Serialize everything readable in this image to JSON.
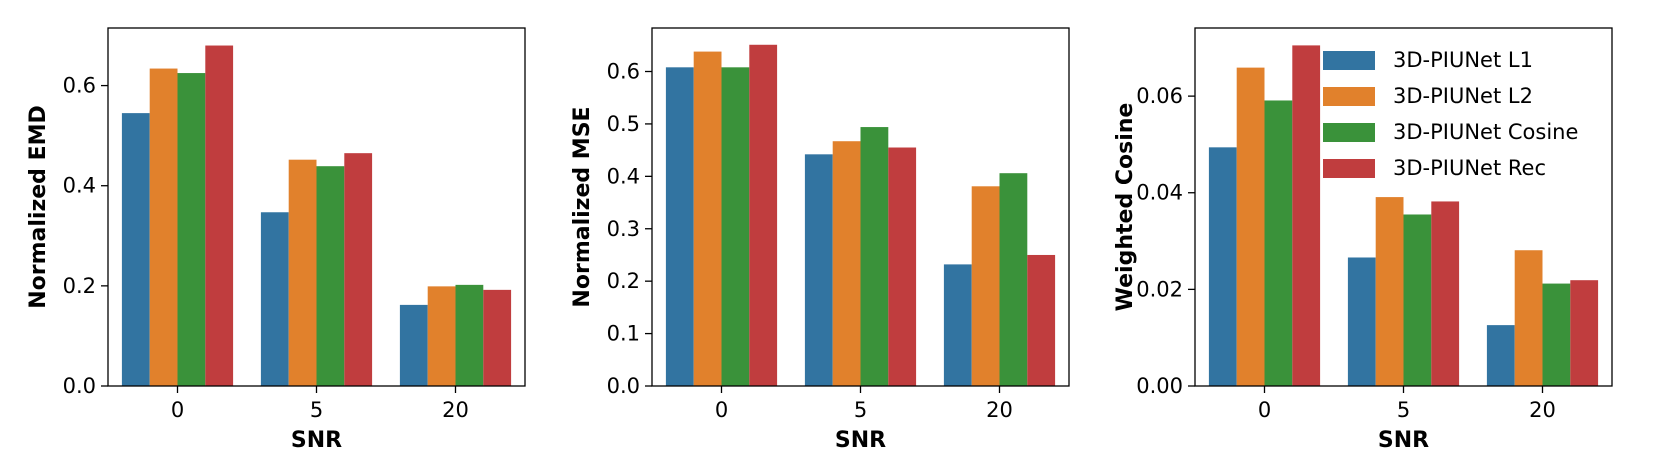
{
  "chart_data": [
    {
      "type": "bar",
      "categories": [
        "0",
        "5",
        "20"
      ],
      "series": [
        {
          "name": "3D-PIUNet L1",
          "values": [
            0.545,
            0.347,
            0.162
          ]
        },
        {
          "name": "3D-PIUNet L2",
          "values": [
            0.634,
            0.452,
            0.199
          ]
        },
        {
          "name": "3D-PIUNet Cosine",
          "values": [
            0.625,
            0.439,
            0.202
          ]
        },
        {
          "name": "3D-PIUNet Rec",
          "values": [
            0.68,
            0.465,
            0.192
          ]
        }
      ],
      "xlabel": "SNR",
      "ylabel": "Normalized EMD",
      "ylim": [
        0,
        0.715
      ],
      "yticks": [
        "0.0",
        "0.2",
        "0.4",
        "0.6"
      ],
      "yticks_values": [
        0,
        0.2,
        0.4,
        0.6
      ],
      "legend": false,
      "grid": false
    },
    {
      "type": "bar",
      "categories": [
        "0",
        "5",
        "20"
      ],
      "series": [
        {
          "name": "3D-PIUNet L1",
          "values": [
            0.608,
            0.442,
            0.232
          ]
        },
        {
          "name": "3D-PIUNet L2",
          "values": [
            0.638,
            0.467,
            0.381
          ]
        },
        {
          "name": "3D-PIUNet Cosine",
          "values": [
            0.608,
            0.494,
            0.406
          ]
        },
        {
          "name": "3D-PIUNet Rec",
          "values": [
            0.651,
            0.455,
            0.25
          ]
        }
      ],
      "xlabel": "SNR",
      "ylabel": "Normalized MSE",
      "ylim": [
        0,
        0.683
      ],
      "yticks": [
        "0.0",
        "0.1",
        "0.2",
        "0.3",
        "0.4",
        "0.5",
        "0.6"
      ],
      "yticks_values": [
        0,
        0.1,
        0.2,
        0.3,
        0.4,
        0.5,
        0.6
      ],
      "legend": false,
      "grid": false
    },
    {
      "type": "bar",
      "categories": [
        "0",
        "5",
        "20"
      ],
      "series": [
        {
          "name": "3D-PIUNet L1",
          "values": [
            0.0494,
            0.0266,
            0.0126
          ]
        },
        {
          "name": "3D-PIUNet L2",
          "values": [
            0.0659,
            0.0391,
            0.0281
          ]
        },
        {
          "name": "3D-PIUNet Cosine",
          "values": [
            0.0591,
            0.0355,
            0.0212
          ]
        },
        {
          "name": "3D-PIUNet Rec",
          "values": [
            0.0705,
            0.0382,
            0.0219
          ]
        }
      ],
      "xlabel": "SNR",
      "ylabel": "Weighted Cosine",
      "ylim": [
        0,
        0.0741
      ],
      "yticks": [
        "0.00",
        "0.02",
        "0.04",
        "0.06"
      ],
      "yticks_values": [
        0,
        0.02,
        0.04,
        0.06
      ],
      "legend": true,
      "legend_position": "top-right",
      "grid": false
    }
  ],
  "colors": [
    "#3274a1",
    "#e1812c",
    "#3a923a",
    "#c03d3e"
  ]
}
